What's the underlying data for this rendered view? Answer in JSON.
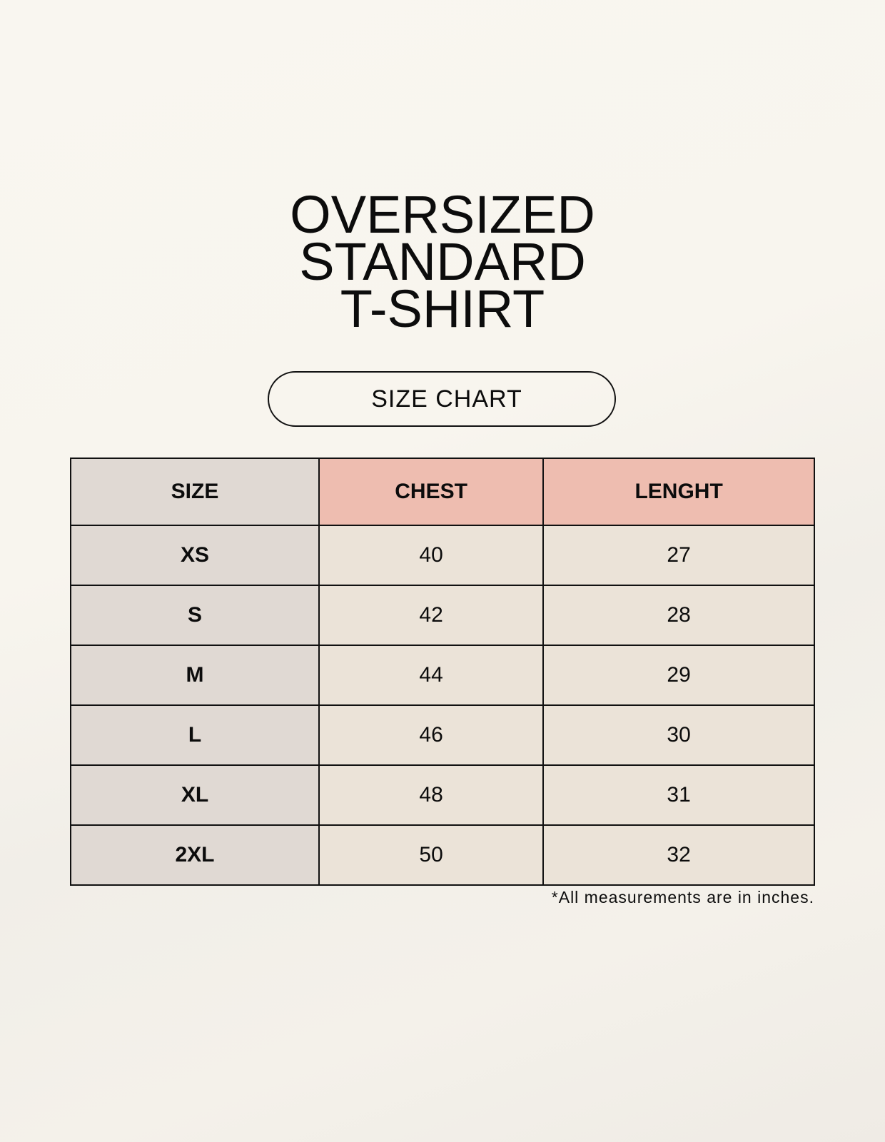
{
  "title": {
    "lines": [
      "OVERSIZED",
      "STANDARD",
      "T-SHIRT"
    ]
  },
  "badge": "SIZE CHART",
  "table": {
    "headers": [
      "SIZE",
      "CHEST",
      "LENGHT"
    ],
    "rows": [
      [
        "XS",
        "40",
        "27"
      ],
      [
        "S",
        "42",
        "28"
      ],
      [
        "M",
        "44",
        "29"
      ],
      [
        "L",
        "46",
        "30"
      ],
      [
        "XL",
        "48",
        "31"
      ],
      [
        "2XL",
        "50",
        "32"
      ]
    ]
  },
  "footnote": "*All measurements are in inches.",
  "colors": {
    "size_column": "#e0d9d3",
    "header_accent": "#eebdb0",
    "value_cells": "#ebe3d8"
  }
}
